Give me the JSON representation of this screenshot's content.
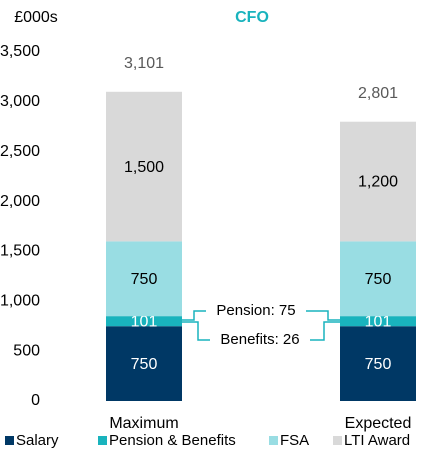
{
  "chart_data": {
    "type": "stacked_bar",
    "title": "CFO",
    "y_axis_label": "£000s",
    "categories": [
      "Maximum",
      "Expected"
    ],
    "series": [
      {
        "name": "Salary",
        "color": "#003865",
        "values": [
          750,
          750
        ]
      },
      {
        "name": "Pension & Benefits",
        "color": "#19b3bd",
        "values": [
          101,
          101
        ]
      },
      {
        "name": "FSA",
        "color": "#99dde3",
        "values": [
          750,
          750
        ]
      },
      {
        "name": "LTI Award",
        "color": "#d9d9d9",
        "values": [
          1500,
          1200
        ],
        "value_labels": [
          "1,500",
          "1,200"
        ]
      }
    ],
    "totals": [
      3101,
      2801
    ],
    "total_labels": [
      "3,101",
      "2,801"
    ],
    "annotations": [
      "Pension: 75",
      "Benefits: 26"
    ],
    "ylim": [
      0,
      3500
    ],
    "yticks": [
      0,
      500,
      {
        "value": 1000,
        "label": "1,000"
      },
      {
        "value": 1500,
        "label": "1,500"
      },
      {
        "value": 2000,
        "label": "2,000"
      },
      {
        "value": 2500,
        "label": "2,500"
      },
      {
        "value": 3000,
        "label": "3,000"
      },
      {
        "value": 3500,
        "label": "3,500"
      }
    ],
    "legend": "bottom",
    "grid": false
  }
}
